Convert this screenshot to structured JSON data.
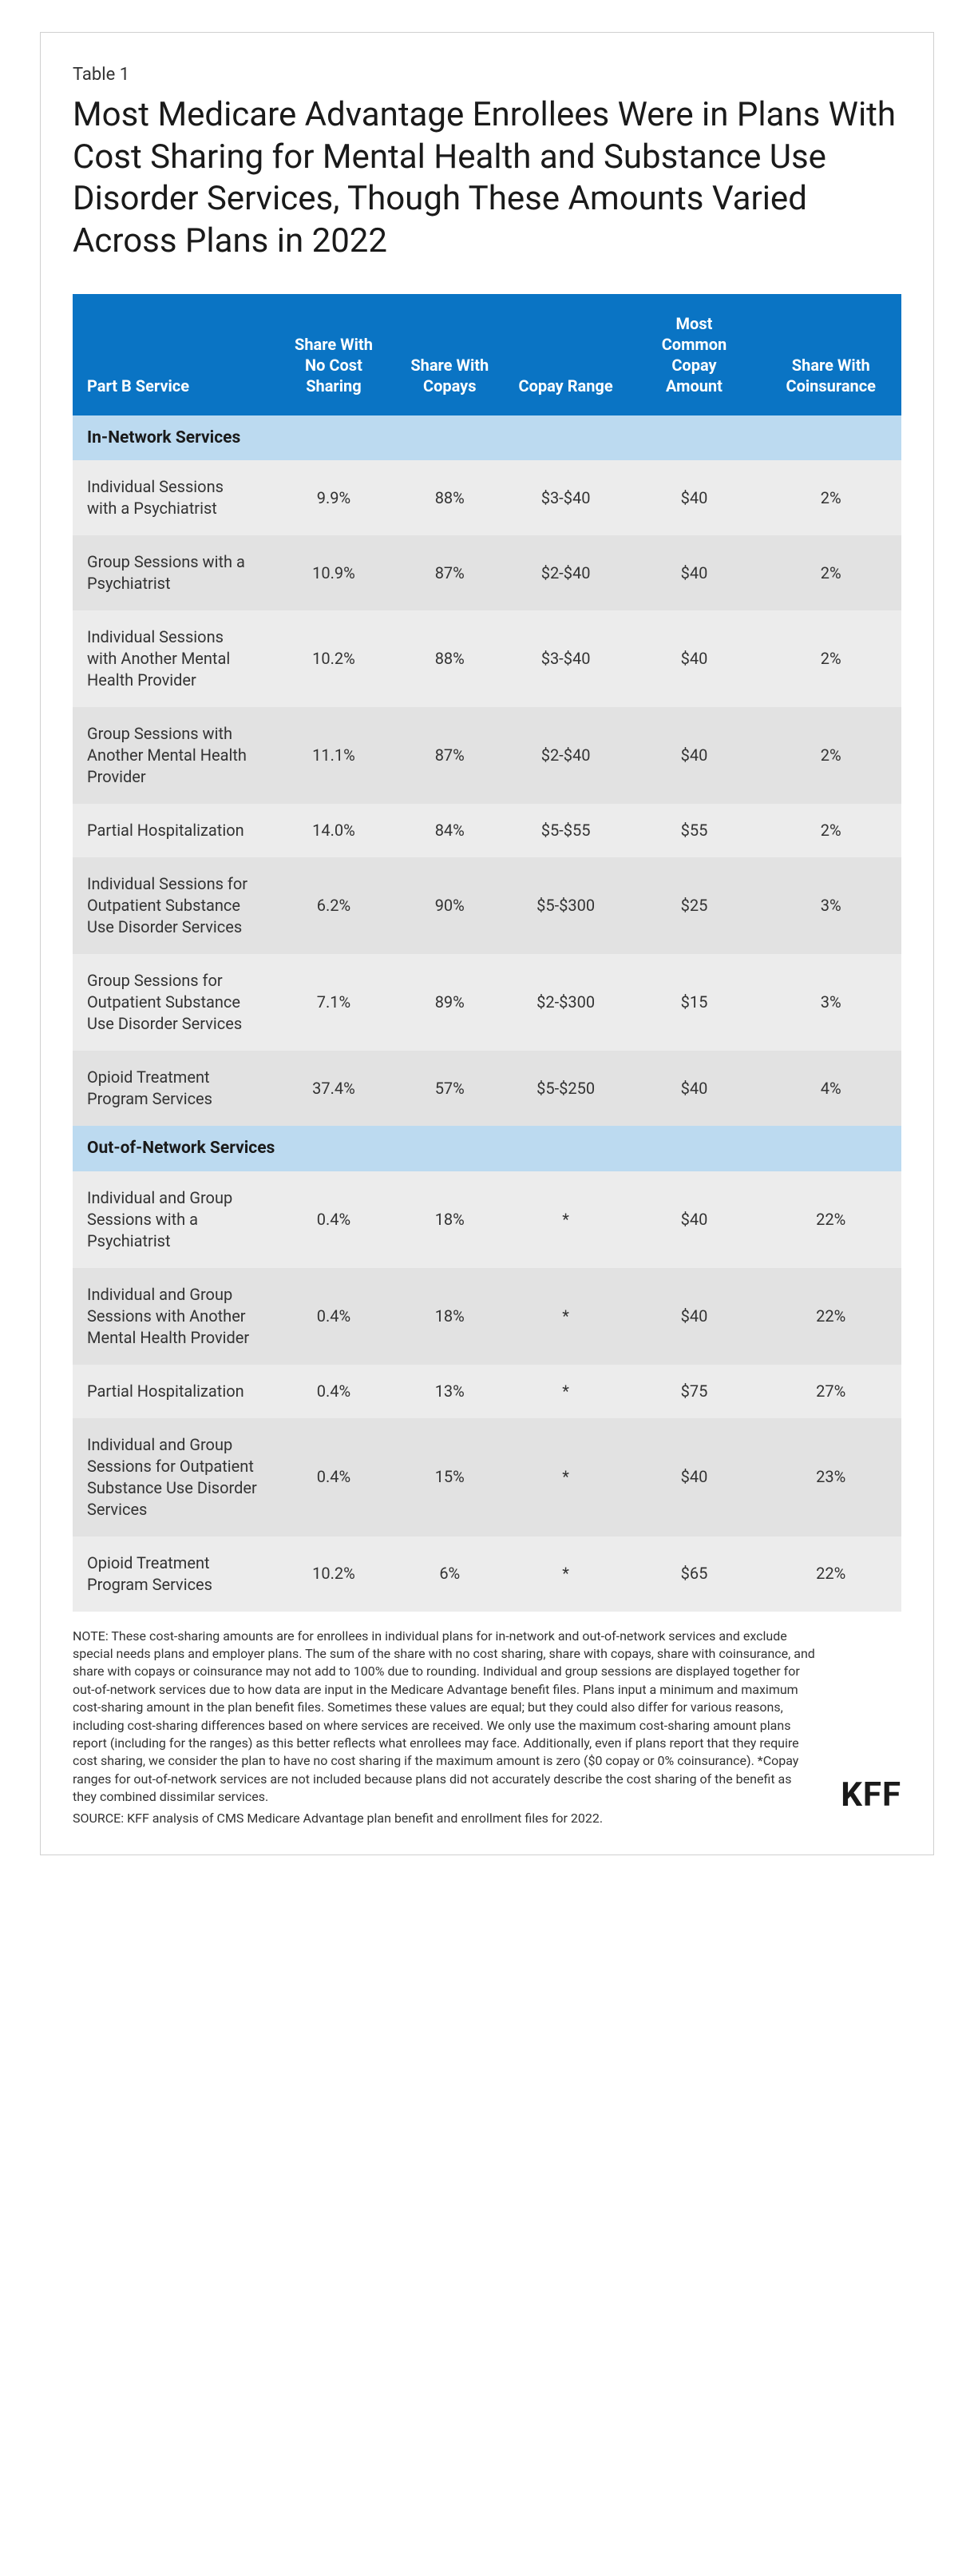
{
  "tableLabel": "Table 1",
  "title": "Most Medicare Advantage Enrollees Were in Plans With Cost Sharing for Mental Health and Substance Use Disorder Services, Though These Amounts Varied Across Plans in 2022",
  "columns": [
    "Part B Service",
    "Share With No Cost Sharing",
    "Share With Copays",
    "Copay Range",
    "Most Common Copay Amount",
    "Share With Coinsurance"
  ],
  "sections": [
    {
      "name": "In-Network Services",
      "rows": [
        {
          "service": "Individual Sessions with a Psychiatrist",
          "noCost": "9.9%",
          "copays": "88%",
          "range": "$3-$40",
          "common": "$40",
          "coins": "2%"
        },
        {
          "service": "Group Sessions with a Psychiatrist",
          "noCost": "10.9%",
          "copays": "87%",
          "range": "$2-$40",
          "common": "$40",
          "coins": "2%"
        },
        {
          "service": "Individual Sessions with Another Mental Health Provider",
          "noCost": "10.2%",
          "copays": "88%",
          "range": "$3-$40",
          "common": "$40",
          "coins": "2%"
        },
        {
          "service": "Group Sessions with Another Mental Health Provider",
          "noCost": "11.1%",
          "copays": "87%",
          "range": "$2-$40",
          "common": "$40",
          "coins": "2%"
        },
        {
          "service": "Partial Hospitalization",
          "noCost": "14.0%",
          "copays": "84%",
          "range": "$5-$55",
          "common": "$55",
          "coins": "2%"
        },
        {
          "service": "Individual Sessions for Outpatient Substance Use Disorder Services",
          "noCost": "6.2%",
          "copays": "90%",
          "range": "$5-$300",
          "common": "$25",
          "coins": "3%"
        },
        {
          "service": "Group Sessions for Outpatient Substance Use Disorder Services",
          "noCost": "7.1%",
          "copays": "89%",
          "range": "$2-$300",
          "common": "$15",
          "coins": "3%"
        },
        {
          "service": "Opioid Treatment Program Services",
          "noCost": "37.4%",
          "copays": "57%",
          "range": "$5-$250",
          "common": "$40",
          "coins": "4%"
        }
      ]
    },
    {
      "name": "Out-of-Network Services",
      "rows": [
        {
          "service": "Individual and Group Sessions with a Psychiatrist",
          "noCost": "0.4%",
          "copays": "18%",
          "range": "*",
          "common": "$40",
          "coins": "22%"
        },
        {
          "service": "Individual and Group Sessions with Another Mental Health Provider",
          "noCost": "0.4%",
          "copays": "18%",
          "range": "*",
          "common": "$40",
          "coins": "22%"
        },
        {
          "service": "Partial Hospitalization",
          "noCost": "0.4%",
          "copays": "13%",
          "range": "*",
          "common": "$75",
          "coins": "27%"
        },
        {
          "service": "Individual and Group Sessions for Outpatient Substance Use Disorder Services",
          "noCost": "0.4%",
          "copays": "15%",
          "range": "*",
          "common": "$40",
          "coins": "23%"
        },
        {
          "service": "Opioid Treatment Program Services",
          "noCost": "10.2%",
          "copays": "6%",
          "range": "*",
          "common": "$65",
          "coins": "22%"
        }
      ]
    }
  ],
  "note": "NOTE: These cost-sharing amounts are for enrollees in individual plans for in-network and out-of-network services and exclude special needs plans and employer plans. The sum of the share with no cost sharing, share with copays, share with coinsurance, and share with copays or coinsurance may not add to 100% due to rounding. Individual and group sessions are displayed together for out-of-network services due to how data are input in the Medicare Advantage benefit files. Plans input a minimum and maximum cost-sharing amount in the plan benefit files. Sometimes these values are equal; but they could also differ for various reasons, including cost-sharing differences based on where services are received. We only use the maximum cost-sharing amount plans report (including for the ranges) as this better reflects what enrollees may face. Additionally, even if plans report that they require cost sharing, we consider the plan to have no cost sharing if the maximum amount is zero ($0 copay or 0% coinsurance). *Copay ranges for out-of-network services are not included because plans did not accurately describe the cost sharing of the benefit as they combined dissimilar services.",
  "source": "SOURCE: KFF analysis of CMS Medicare Advantage plan benefit and enrollment files for 2022.",
  "logo": "KFF",
  "styling": {
    "headerBg": "#0a74c4",
    "headerText": "#ffffff",
    "sectionBg": "#bcdaf0",
    "rowEvenBg": "#ececec",
    "rowOddBg": "#e2e2e2",
    "borderColor": "#d0d0d0",
    "titleFontSize": 42,
    "headerFontSize": 20,
    "cellFontSize": 20,
    "noteFontSize": 16,
    "tableLabelFontSize": 22,
    "columnWidths": [
      "24%",
      "15%",
      "13%",
      "15%",
      "16%",
      "17%"
    ]
  }
}
